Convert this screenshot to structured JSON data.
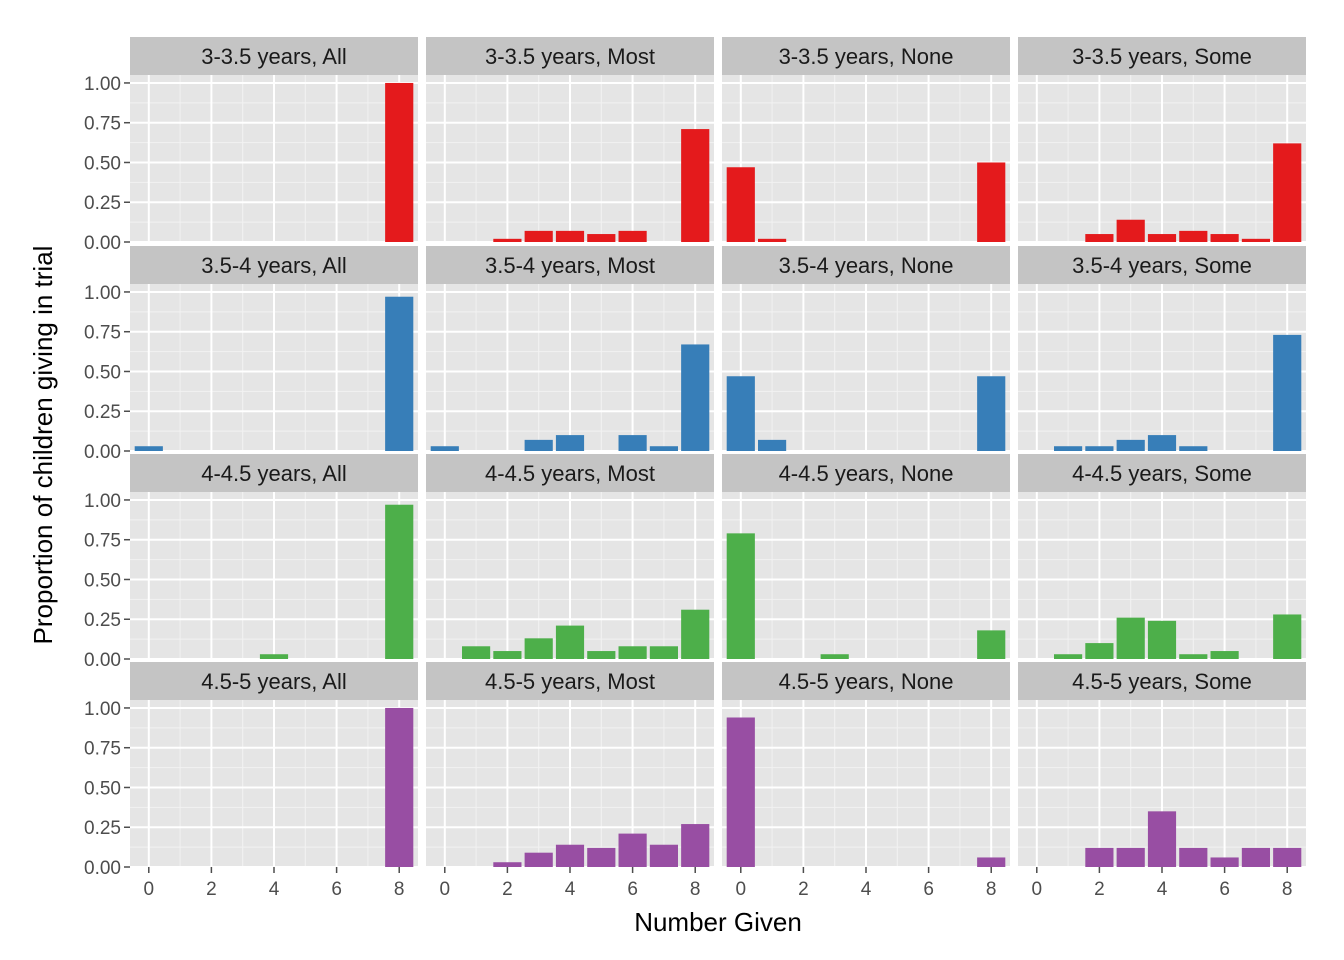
{
  "chart_data": {
    "type": "bar",
    "facet_layout": "4 rows x 4 columns",
    "xlabel": "Number Given",
    "ylabel": "Proportion of children giving in trial",
    "x_ticks": [
      "0",
      "2",
      "4",
      "6",
      "8"
    ],
    "y_ticks": [
      "0.00",
      "0.25",
      "0.50",
      "0.75",
      "1.00"
    ],
    "xlim": [
      -0.6,
      8.6
    ],
    "ylim": [
      0,
      1.05
    ],
    "grid": true,
    "legend": "none",
    "panel_background": "#e5e5e5",
    "strip_background": "#c4c4c4",
    "gridline_color": "#ffffff",
    "x_values": [
      0,
      1,
      2,
      3,
      4,
      5,
      6,
      7,
      8
    ],
    "row_colors": [
      "#e41a1c",
      "#377eb8",
      "#4daf4a",
      "#984ea3"
    ],
    "facets": [
      {
        "label": "3-3.5 years, All",
        "values": [
          0,
          0,
          0,
          0,
          0,
          0,
          0,
          0,
          1.0
        ]
      },
      {
        "label": "3-3.5 years, Most",
        "values": [
          0,
          0,
          0.02,
          0.07,
          0.07,
          0.05,
          0.07,
          0,
          0.71
        ]
      },
      {
        "label": "3-3.5 years, None",
        "values": [
          0.47,
          0.02,
          0,
          0,
          0,
          0,
          0,
          0,
          0.5
        ]
      },
      {
        "label": "3-3.5 years, Some",
        "values": [
          0,
          0,
          0.05,
          0.14,
          0.05,
          0.07,
          0.05,
          0.02,
          0.62
        ]
      },
      {
        "label": "3.5-4 years, All",
        "values": [
          0.03,
          0,
          0,
          0,
          0,
          0,
          0,
          0,
          0.97
        ]
      },
      {
        "label": "3.5-4 years, Most",
        "values": [
          0.03,
          0,
          0,
          0.07,
          0.1,
          0,
          0.1,
          0.03,
          0.67
        ]
      },
      {
        "label": "3.5-4 years, None",
        "values": [
          0.47,
          0.07,
          0,
          0,
          0,
          0,
          0,
          0,
          0.47
        ]
      },
      {
        "label": "3.5-4 years, Some",
        "values": [
          0,
          0.03,
          0.03,
          0.07,
          0.1,
          0.03,
          0,
          0,
          0.73
        ]
      },
      {
        "label": "4-4.5 years, All",
        "values": [
          0,
          0,
          0,
          0,
          0.03,
          0,
          0,
          0,
          0.97
        ]
      },
      {
        "label": "4-4.5 years, Most",
        "values": [
          0,
          0.08,
          0.05,
          0.13,
          0.21,
          0.05,
          0.08,
          0.08,
          0.31
        ]
      },
      {
        "label": "4-4.5 years, None",
        "values": [
          0.79,
          0,
          0,
          0.03,
          0,
          0,
          0,
          0,
          0.18
        ]
      },
      {
        "label": "4-4.5 years, Some",
        "values": [
          0,
          0.03,
          0.1,
          0.26,
          0.24,
          0.03,
          0.05,
          0,
          0.28
        ]
      },
      {
        "label": "4.5-5 years, All",
        "values": [
          0,
          0,
          0,
          0,
          0,
          0,
          0,
          0,
          1.0
        ]
      },
      {
        "label": "4.5-5 years, Most",
        "values": [
          0,
          0,
          0.03,
          0.09,
          0.14,
          0.12,
          0.21,
          0.14,
          0.27
        ]
      },
      {
        "label": "4.5-5 years, None",
        "values": [
          0.94,
          0,
          0,
          0,
          0,
          0,
          0,
          0,
          0.06
        ]
      },
      {
        "label": "4.5-5 years, Some",
        "values": [
          0,
          0,
          0.12,
          0.12,
          0.35,
          0.12,
          0.06,
          0.12,
          0.12
        ]
      }
    ]
  }
}
